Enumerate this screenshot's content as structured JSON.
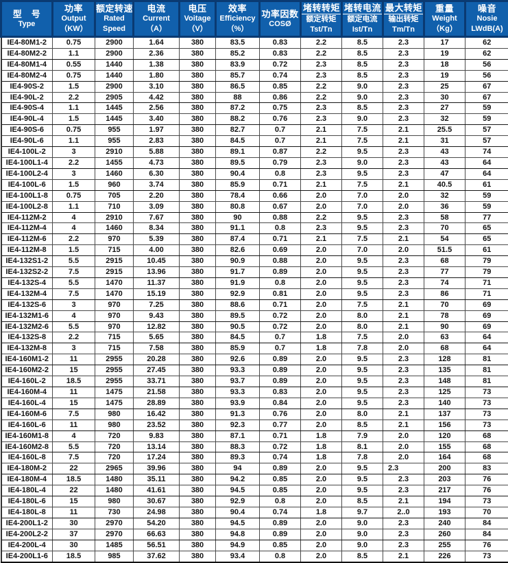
{
  "colors": {
    "header_bg": "#1160ac",
    "header_border": "#0a3a72",
    "header_text": "#ffffff",
    "body_border": "#4a4a4a",
    "body_border_strong": "#161616",
    "body_text": "#121212",
    "body_bg": "#ffffff"
  },
  "table": {
    "columns": [
      {
        "id": "type",
        "lines": [
          "型　号",
          "Type"
        ],
        "fraction": false
      },
      {
        "id": "output",
        "lines": [
          "功率",
          "Output",
          "（KW）"
        ],
        "fraction": false
      },
      {
        "id": "rated-speed",
        "lines": [
          "额定转速",
          "Rated",
          "Speed"
        ],
        "fraction": false
      },
      {
        "id": "current",
        "lines": [
          "电流",
          "Current",
          "（A）"
        ],
        "fraction": false
      },
      {
        "id": "voltage",
        "lines": [
          "电压",
          "Voitage",
          "（V）"
        ],
        "fraction": false
      },
      {
        "id": "efficiency",
        "lines": [
          "效率",
          "Efficiency",
          "（%）"
        ],
        "fraction": false
      },
      {
        "id": "power-factor",
        "lines": [
          "功率因数",
          "COSØ"
        ],
        "fraction": false
      },
      {
        "id": "tst-tn",
        "lines": [
          "堵转转矩",
          "额定转矩",
          "Tst/Tn"
        ],
        "fraction": true
      },
      {
        "id": "ist-tn",
        "lines": [
          "堵转电流",
          "额定电流",
          "Ist/Tn"
        ],
        "fraction": true
      },
      {
        "id": "tm-tn",
        "lines": [
          "最大转矩",
          "输出转矩",
          "Tm/Tn"
        ],
        "fraction": true
      },
      {
        "id": "weight",
        "lines": [
          "重量",
          "Weight",
          "（Kg）"
        ],
        "fraction": false
      },
      {
        "id": "noise",
        "lines": [
          "噪音",
          "Nosie",
          "LWdB(A)"
        ],
        "fraction": false
      }
    ],
    "rows": [
      [
        "IE4-80M1-2",
        "0.75",
        "2900",
        "1.64",
        "380",
        "83.5",
        "0.83",
        "2.2",
        "8.5",
        "2.3",
        "17",
        "62"
      ],
      [
        "IE4-80M2-2",
        "1.1",
        "2900",
        "2.36",
        "380",
        "85.2",
        "0.83",
        "2.2",
        "8.5",
        "2.3",
        "19",
        "62"
      ],
      [
        "IE4-80M1-4",
        "0.55",
        "1440",
        "1.38",
        "380",
        "83.9",
        "0.72",
        "2.3",
        "8.5",
        "2.3",
        "18",
        "56"
      ],
      [
        "IE4-80M2-4",
        "0.75",
        "1440",
        "1.80",
        "380",
        "85.7",
        "0.74",
        "2.3",
        "8.5",
        "2.3",
        "19",
        "56"
      ],
      [
        "IE4-90S-2",
        "1.5",
        "2900",
        "3.10",
        "380",
        "86.5",
        "0.85",
        "2.2",
        "9.0",
        "2.3",
        "25",
        "67"
      ],
      [
        "IE4-90L-2",
        "2.2",
        "2905",
        "4.42",
        "380",
        "88",
        "0.86",
        "2.2",
        "9.0",
        "2.3",
        "30",
        "67"
      ],
      [
        "IE4-90S-4",
        "1.1",
        "1445",
        "2.56",
        "380",
        "87.2",
        "0.75",
        "2.3",
        "8.5",
        "2.3",
        "27",
        "59"
      ],
      [
        "IE4-90L-4",
        "1.5",
        "1445",
        "3.40",
        "380",
        "88.2",
        "0.76",
        "2.3",
        "9.0",
        "2.3",
        "32",
        "59"
      ],
      [
        "IE4-90S-6",
        "0.75",
        "955",
        "1.97",
        "380",
        "82.7",
        "0.7",
        "2.1",
        "7.5",
        "2.1",
        "25.5",
        "57"
      ],
      [
        "IE4-90L-6",
        "1.1",
        "955",
        "2.83",
        "380",
        "84.5",
        "0.7",
        "2.1",
        "7.5",
        "2.1",
        "31",
        "57"
      ],
      [
        "IE4-100L-2",
        "3",
        "2910",
        "5.88",
        "380",
        "89.1",
        "0.87",
        "2.2",
        "9.5",
        "2.3",
        "43",
        "74"
      ],
      [
        "IE4-100L1-4",
        "2.2",
        "1455",
        "4.73",
        "380",
        "89.5",
        "0.79",
        "2.3",
        "9.0",
        "2.3",
        "43",
        "64"
      ],
      [
        "IE4-100L2-4",
        "3",
        "1460",
        "6.30",
        "380",
        "90.4",
        "0.8",
        "2.3",
        "9.5",
        "2.3",
        "47",
        "64"
      ],
      [
        "IE4-100L-6",
        "1.5",
        "960",
        "3.74",
        "380",
        "85.9",
        "0.71",
        "2.1",
        "7.5",
        "2.1",
        "40.5",
        "61"
      ],
      [
        "IE4-100L1-8",
        "0.75",
        "705",
        "2.20",
        "380",
        "78.4",
        "0.66",
        "2.0",
        "7.0",
        "2.0",
        "32",
        "59"
      ],
      [
        "IE4-100L2-8",
        "1.1",
        "710",
        "3.09",
        "380",
        "80.8",
        "0.67",
        "2.0",
        "7.0",
        "2.0",
        "36",
        "59"
      ],
      [
        "IE4-112M-2",
        "4",
        "2910",
        "7.67",
        "380",
        "90",
        "0.88",
        "2.2",
        "9.5",
        "2.3",
        "58",
        "77"
      ],
      [
        "IE4-112M-4",
        "4",
        "1460",
        "8.34",
        "380",
        "91.1",
        "0.8",
        "2.3",
        "9.5",
        "2.3",
        "70",
        "65"
      ],
      [
        "IE4-112M-6",
        "2.2",
        "970",
        "5.39",
        "380",
        "87.4",
        "0.71",
        "2.1",
        "7.5",
        "2.1",
        "54",
        "65"
      ],
      [
        "IE4-112M-8",
        "1.5",
        "715",
        "4.00",
        "380",
        "82.6",
        "0.69",
        "2.0",
        "7.0",
        "2.0",
        "51.5",
        "61"
      ],
      [
        "IE4-132S1-2",
        "5.5",
        "2915",
        "10.45",
        "380",
        "90.9",
        "0.88",
        "2.0",
        "9.5",
        "2.3",
        "68",
        "79"
      ],
      [
        "IE4-132S2-2",
        "7.5",
        "2915",
        "13.96",
        "380",
        "91.7",
        "0.89",
        "2.0",
        "9.5",
        "2.3",
        "77",
        "79"
      ],
      [
        "IE4-132S-4",
        "5.5",
        "1470",
        "11.37",
        "380",
        "91.9",
        "0.8",
        "2.0",
        "9.5",
        "2.3",
        "74",
        "71"
      ],
      [
        "IE4-132M-4",
        "7.5",
        "1470",
        "15.19",
        "380",
        "92.9",
        "0.81",
        "2.0",
        "9.5",
        "2.3",
        "86",
        "71"
      ],
      [
        "IE4-132S-6",
        "3",
        "970",
        "7.25",
        "380",
        "88.6",
        "0.71",
        "2.0",
        "7.5",
        "2.1",
        "70",
        "69"
      ],
      [
        "IE4-132M1-6",
        "4",
        "970",
        "9.43",
        "380",
        "89.5",
        "0.72",
        "2.0",
        "8.0",
        "2.1",
        "78",
        "69"
      ],
      [
        "IE4-132M2-6",
        "5.5",
        "970",
        "12.82",
        "380",
        "90.5",
        "0.72",
        "2.0",
        "8.0",
        "2.1",
        "90",
        "69"
      ],
      [
        "IE4-132S-8",
        "2.2",
        "715",
        "5.65",
        "380",
        "84.5",
        "0.7",
        "1.8",
        "7.5",
        "2.0",
        "63",
        "64"
      ],
      [
        "IE4-132M-8",
        "3",
        "715",
        "7.58",
        "380",
        "85.9",
        "0.7",
        "1.8",
        "7.8",
        "2.0",
        "68",
        "64"
      ],
      [
        "IE4-160M1-2",
        "11",
        "2955",
        "20.28",
        "380",
        "92.6",
        "0.89",
        "2.0",
        "9.5",
        "2.3",
        "128",
        "81"
      ],
      [
        "IE4-160M2-2",
        "15",
        "2955",
        "27.45",
        "380",
        "93.3",
        "0.89",
        "2.0",
        "9.5",
        "2.3",
        "135",
        "81"
      ],
      [
        "IE4-160L-2",
        "18.5",
        "2955",
        "33.71",
        "380",
        "93.7",
        "0.89",
        "2.0",
        "9.5",
        "2.3",
        "148",
        "81"
      ],
      [
        "IE4-160M-4",
        "11",
        "1475",
        "21.58",
        "380",
        "93.3",
        "0.83",
        "2.0",
        "9.5",
        "2.3",
        "125",
        "73"
      ],
      [
        "IE4-160L-4",
        "15",
        "1475",
        "28.89",
        "380",
        "93.9",
        "0.84",
        "2.0",
        "9.5",
        "2.3",
        "140",
        "73"
      ],
      [
        "IE4-160M-6",
        "7.5",
        "980",
        "16.42",
        "380",
        "91.3",
        "0.76",
        "2.0",
        "8.0",
        "2.1",
        "137",
        "73"
      ],
      [
        "IE4-160L-6",
        "11",
        "980",
        "23.52",
        "380",
        "92.3",
        "0.77",
        "2.0",
        "8.5",
        "2.1",
        "156",
        "73"
      ],
      [
        "IE4-160M1-8",
        "4",
        "720",
        "9.83",
        "380",
        "87.1",
        "0.71",
        "1.8",
        "7.9",
        "2.0",
        "120",
        "68"
      ],
      [
        "IE4-160M2-8",
        "5.5",
        "720",
        "13.14",
        "380",
        "88.3",
        "0.72",
        "1.8",
        "8.1",
        "2.0",
        "155",
        "68"
      ],
      [
        "IE4-160L-8",
        "7.5",
        "720",
        "17.24",
        "380",
        "89.3",
        "0.74",
        "1.8",
        "7.8",
        "2.0",
        "164",
        "68"
      ],
      [
        "IE4-180M-2",
        "22",
        "2965",
        "39.96",
        "380",
        "94",
        "0.89",
        "2.0",
        "9.5",
        "2.3",
        "200",
        "83"
      ],
      [
        "IE4-180M-4",
        "18.5",
        "1480",
        "35.11",
        "380",
        "94.2",
        "0.85",
        "2.0",
        "9.5",
        "2.3",
        "203",
        "76"
      ],
      [
        "IE4-180L-4",
        "22",
        "1480",
        "41.61",
        "380",
        "94.5",
        "0.85",
        "2.0",
        "9.5",
        "2.3",
        "217",
        "76"
      ],
      [
        "IE4-180L-6",
        "15",
        "980",
        "30.67",
        "380",
        "92.9",
        "0.8",
        "2.0",
        "8.5",
        "2.1",
        "194",
        "73"
      ],
      [
        "IE4-180L-8",
        "11",
        "730",
        "24.98",
        "380",
        "90.4",
        "0.74",
        "1.8",
        "9.7",
        "2..0",
        "193",
        "70"
      ],
      [
        "IE4-200L1-2",
        "30",
        "2970",
        "54.20",
        "380",
        "94.5",
        "0.89",
        "2.0",
        "9.0",
        "2.3",
        "240",
        "84"
      ],
      [
        "IE4-200L2-2",
        "37",
        "2970",
        "66.63",
        "380",
        "94.8",
        "0.89",
        "2.0",
        "9.0",
        "2.3",
        "260",
        "84"
      ],
      [
        "IE4-200L-4",
        "30",
        "1485",
        "56.51",
        "380",
        "94.9",
        "0.85",
        "2.0",
        "9.0",
        "2.3",
        "255",
        "76"
      ],
      [
        "IE4-200L1-6",
        "18.5",
        "985",
        "37.62",
        "380",
        "93.4",
        "0.8",
        "2.0",
        "8.5",
        "2.1",
        "226",
        "73"
      ]
    ]
  }
}
